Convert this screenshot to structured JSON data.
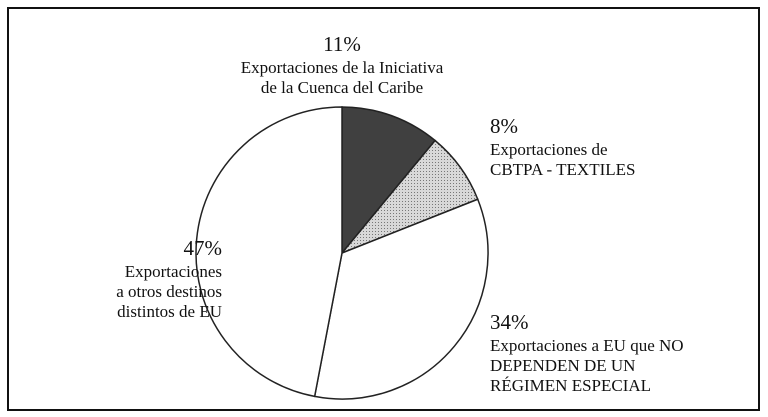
{
  "chart_data": {
    "type": "pie",
    "categories": [
      [
        "Exportaciones de la Iniciativa",
        "de la Cuenca del Caribe"
      ],
      [
        "Exportaciones de",
        "CBTPA - TEXTILES"
      ],
      [
        "Exportaciones a EU que NO",
        "DEPENDEN DE UN",
        "RÉGIMEN ESPECIAL"
      ],
      [
        "Exportaciones",
        "a otros destinos",
        "distintos de EU"
      ]
    ],
    "values": [
      11,
      8,
      34,
      47
    ],
    "value_labels": [
      "11%",
      "8%",
      "34%",
      "47%"
    ],
    "colors": [
      "#404040",
      "#c4c4c4",
      "#ffffff",
      "#ffffff"
    ]
  }
}
